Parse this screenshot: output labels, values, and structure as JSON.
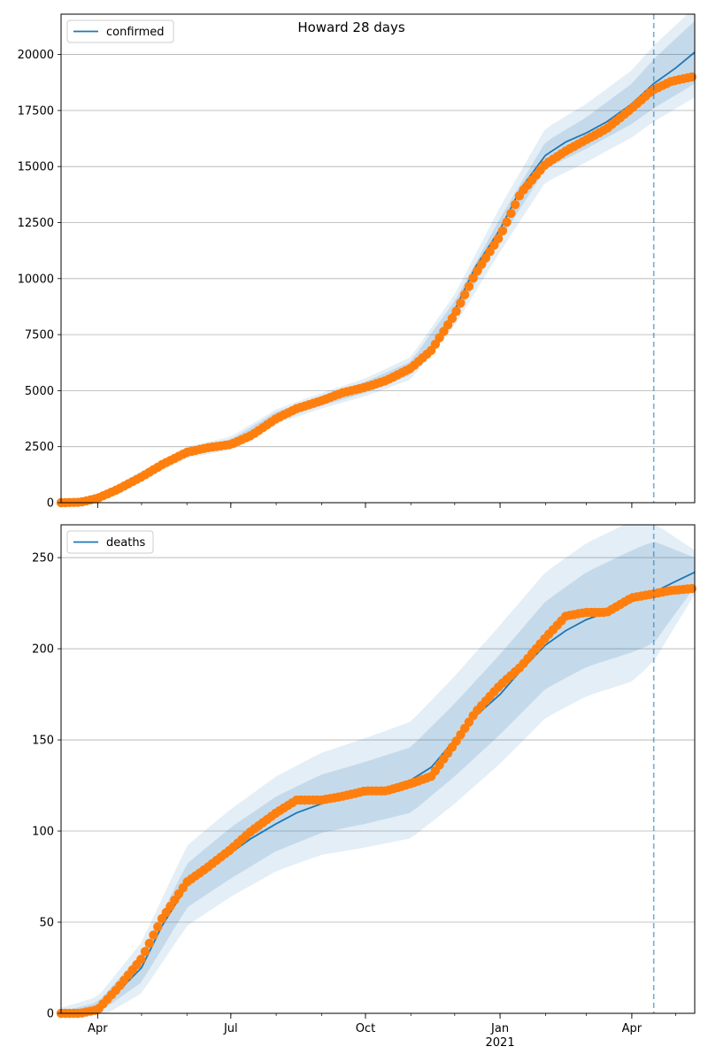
{
  "figure": {
    "title": "Howard 28 days"
  },
  "colors": {
    "model_line": "#1f77b4",
    "band": "#1f77b4",
    "observed": "#ff7f0e",
    "grid": "#b0b0b0",
    "vline": "#1f77b4"
  },
  "x_axis": {
    "ticks": [
      {
        "label": "Apr",
        "sublabel": ""
      },
      {
        "label": "Jul",
        "sublabel": ""
      },
      {
        "label": "Oct",
        "sublabel": ""
      },
      {
        "label": "Jan",
        "sublabel": "2021"
      },
      {
        "label": "Apr",
        "sublabel": ""
      }
    ]
  },
  "chart_data": [
    {
      "type": "line",
      "legend": [
        "confirmed"
      ],
      "legend_position": "upper-left",
      "grid": "horizontal",
      "xlim": [
        "2020-03-07",
        "2021-05-14"
      ],
      "ylim": [
        0,
        21800
      ],
      "yticks": [
        "0",
        "2500",
        "5000",
        "7500",
        "10000",
        "12500",
        "15000",
        "17500",
        "20000"
      ],
      "forecast_start": "2021-04-16",
      "model": {
        "name": "confirmed",
        "x": [
          "2020-03-07",
          "2020-03-20",
          "2020-04-01",
          "2020-04-15",
          "2020-05-01",
          "2020-05-15",
          "2020-06-01",
          "2020-06-15",
          "2020-07-01",
          "2020-07-15",
          "2020-08-01",
          "2020-08-15",
          "2020-09-01",
          "2020-09-15",
          "2020-10-01",
          "2020-10-15",
          "2020-11-01",
          "2020-11-15",
          "2020-12-01",
          "2020-12-15",
          "2021-01-01",
          "2021-01-15",
          "2021-02-01",
          "2021-02-15",
          "2021-03-01",
          "2021-03-15",
          "2021-04-01",
          "2021-04-16",
          "2021-05-01",
          "2021-05-14"
        ],
        "y": [
          0,
          20,
          200,
          600,
          1200,
          1700,
          2250,
          2500,
          2650,
          3000,
          3850,
          4250,
          4550,
          4900,
          5150,
          5450,
          6000,
          6900,
          8600,
          10500,
          12200,
          14000,
          15500,
          16100,
          16500,
          17000,
          17800,
          18700,
          19400,
          20100
        ]
      },
      "bands": {
        "x": [
          "2020-03-07",
          "2020-04-01",
          "2020-05-01",
          "2020-06-01",
          "2020-07-01",
          "2020-08-01",
          "2020-09-01",
          "2020-10-01",
          "2020-11-01",
          "2020-12-01",
          "2021-01-01",
          "2021-02-01",
          "2021-03-01",
          "2021-04-01",
          "2021-04-16",
          "2021-05-14"
        ],
        "center": [
          0,
          200,
          1200,
          2250,
          2650,
          3850,
          4550,
          5150,
          6000,
          8600,
          12200,
          15500,
          16500,
          17800,
          18700,
          20100
        ],
        "half_widths": [
          [
            10,
            60,
            120,
            150,
            170,
            200,
            220,
            250,
            300,
            400,
            500,
            600,
            700,
            900,
            1100,
            1400
          ],
          [
            20,
            100,
            200,
            250,
            300,
            320,
            350,
            400,
            500,
            700,
            1000,
            1200,
            1300,
            1500,
            1700,
            2000
          ]
        ]
      },
      "observed": {
        "x": [
          "2020-03-07",
          "2020-03-20",
          "2020-04-01",
          "2020-04-15",
          "2020-05-01",
          "2020-05-15",
          "2020-06-01",
          "2020-06-15",
          "2020-07-01",
          "2020-07-15",
          "2020-08-01",
          "2020-08-15",
          "2020-09-01",
          "2020-09-15",
          "2020-10-01",
          "2020-10-15",
          "2020-11-01",
          "2020-11-15",
          "2020-12-01",
          "2020-12-15",
          "2021-01-01",
          "2021-01-15",
          "2021-02-01",
          "2021-02-15",
          "2021-03-01",
          "2021-03-15",
          "2021-04-01",
          "2021-04-15",
          "2021-04-28",
          "2021-05-12"
        ],
        "y": [
          0,
          20,
          200,
          600,
          1150,
          1700,
          2250,
          2450,
          2600,
          3000,
          3750,
          4200,
          4550,
          4900,
          5150,
          5450,
          6000,
          6800,
          8400,
          10200,
          11900,
          13800,
          15100,
          15700,
          16200,
          16700,
          17600,
          18400,
          18800,
          19000
        ]
      }
    },
    {
      "type": "line",
      "legend": [
        "deaths"
      ],
      "legend_position": "upper-left",
      "grid": "horizontal",
      "xlim": [
        "2020-03-07",
        "2021-05-14"
      ],
      "ylim": [
        0,
        268
      ],
      "yticks": [
        "0",
        "50",
        "100",
        "150",
        "200",
        "250"
      ],
      "forecast_start": "2021-04-16",
      "model": {
        "name": "deaths",
        "x": [
          "2020-03-07",
          "2020-03-20",
          "2020-04-01",
          "2020-04-15",
          "2020-05-01",
          "2020-05-15",
          "2020-06-01",
          "2020-06-15",
          "2020-07-01",
          "2020-07-15",
          "2020-08-01",
          "2020-08-15",
          "2020-09-01",
          "2020-09-15",
          "2020-10-01",
          "2020-10-15",
          "2020-11-01",
          "2020-11-15",
          "2020-12-01",
          "2020-12-15",
          "2021-01-01",
          "2021-01-15",
          "2021-02-01",
          "2021-02-15",
          "2021-03-01",
          "2021-03-15",
          "2021-04-01",
          "2021-04-16",
          "2021-05-01",
          "2021-05-14"
        ],
        "y": [
          0,
          1,
          3,
          12,
          25,
          48,
          70,
          80,
          88,
          96,
          104,
          110,
          115,
          118,
          121,
          123,
          128,
          135,
          150,
          163,
          175,
          188,
          202,
          210,
          216,
          220,
          226,
          231,
          237,
          242
        ]
      },
      "bands": {
        "x": [
          "2020-03-07",
          "2020-04-01",
          "2020-05-01",
          "2020-06-01",
          "2020-07-01",
          "2020-08-01",
          "2020-09-01",
          "2020-10-01",
          "2020-11-01",
          "2020-12-01",
          "2021-01-01",
          "2021-02-01",
          "2021-03-01",
          "2021-04-01",
          "2021-04-16",
          "2021-05-14"
        ],
        "center": [
          0,
          3,
          25,
          70,
          88,
          104,
          115,
          121,
          128,
          150,
          175,
          202,
          216,
          226,
          231,
          242
        ],
        "half_widths": [
          [
            1,
            3,
            8,
            12,
            14,
            15,
            16,
            17,
            18,
            20,
            22,
            24,
            26,
            28,
            28,
            8
          ],
          [
            3,
            6,
            14,
            22,
            24,
            26,
            28,
            30,
            32,
            35,
            38,
            40,
            42,
            44,
            38,
            12
          ]
        ]
      },
      "observed": {
        "x": [
          "2020-03-07",
          "2020-03-20",
          "2020-04-01",
          "2020-04-15",
          "2020-05-01",
          "2020-05-15",
          "2020-06-01",
          "2020-06-15",
          "2020-07-01",
          "2020-07-15",
          "2020-08-01",
          "2020-08-15",
          "2020-09-01",
          "2020-09-15",
          "2020-10-01",
          "2020-10-15",
          "2020-11-01",
          "2020-11-15",
          "2020-12-01",
          "2020-12-15",
          "2021-01-01",
          "2021-01-15",
          "2021-02-01",
          "2021-02-15",
          "2021-03-01",
          "2021-03-15",
          "2021-04-01",
          "2021-04-15",
          "2021-04-28",
          "2021-05-12"
        ],
        "y": [
          0,
          0,
          2,
          14,
          30,
          52,
          72,
          80,
          90,
          100,
          110,
          117,
          117,
          119,
          122,
          122,
          126,
          130,
          148,
          165,
          180,
          190,
          206,
          218,
          220,
          220,
          228,
          230,
          232,
          233
        ]
      }
    }
  ]
}
